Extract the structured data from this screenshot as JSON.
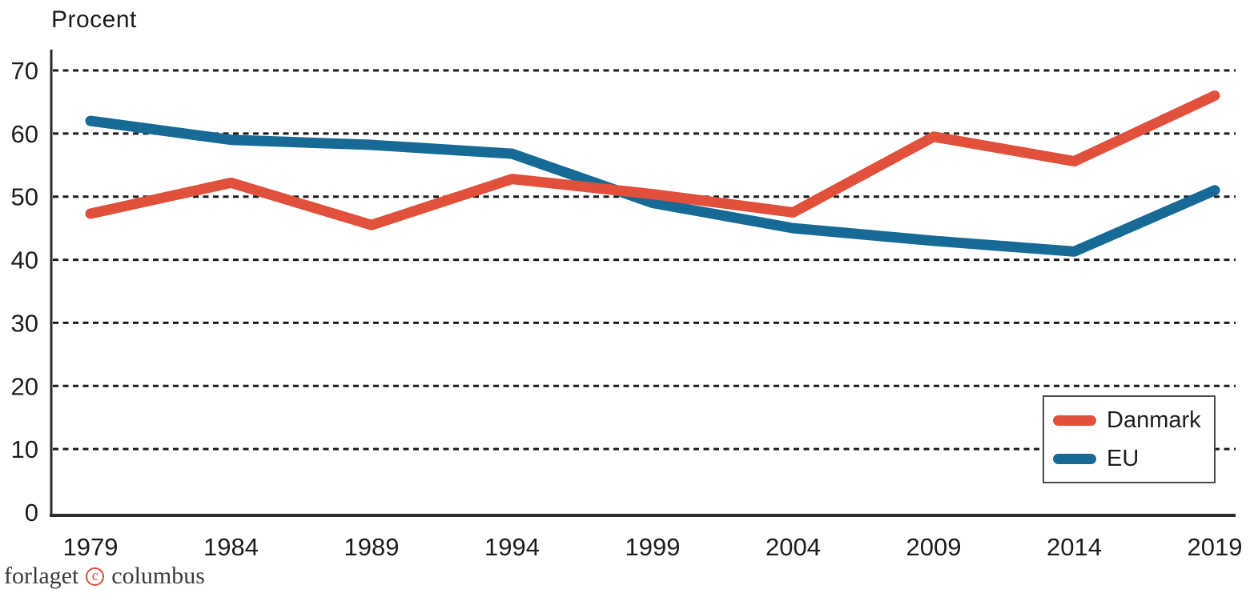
{
  "chart_data": {
    "type": "line",
    "title": "Procent",
    "categories": [
      "1979",
      "1984",
      "1989",
      "1994",
      "1999",
      "2004",
      "2009",
      "2014",
      "2019"
    ],
    "series": [
      {
        "name": "Danmark",
        "color": "#e0503b",
        "values": [
          47.3,
          52.2,
          45.5,
          52.8,
          50.4,
          47.5,
          59.5,
          55.6,
          66.0
        ]
      },
      {
        "name": "EU",
        "color": "#176a96",
        "values": [
          62.0,
          59.0,
          58.2,
          56.8,
          49.0,
          45.0,
          43.0,
          41.3,
          51.0
        ]
      }
    ],
    "ylim": [
      0,
      70
    ],
    "y_ticks": [
      0,
      10,
      20,
      30,
      40,
      50,
      60,
      70
    ],
    "grid": "horizontal-dashed",
    "legend_position": "inside-bottom-right",
    "grid_color": "#1b1b1b",
    "axis_color": "#2b2b2b"
  },
  "footer": {
    "word1": "forlaget",
    "symbol": "c",
    "word2": "columbus",
    "accent_color": "#e0503b"
  }
}
